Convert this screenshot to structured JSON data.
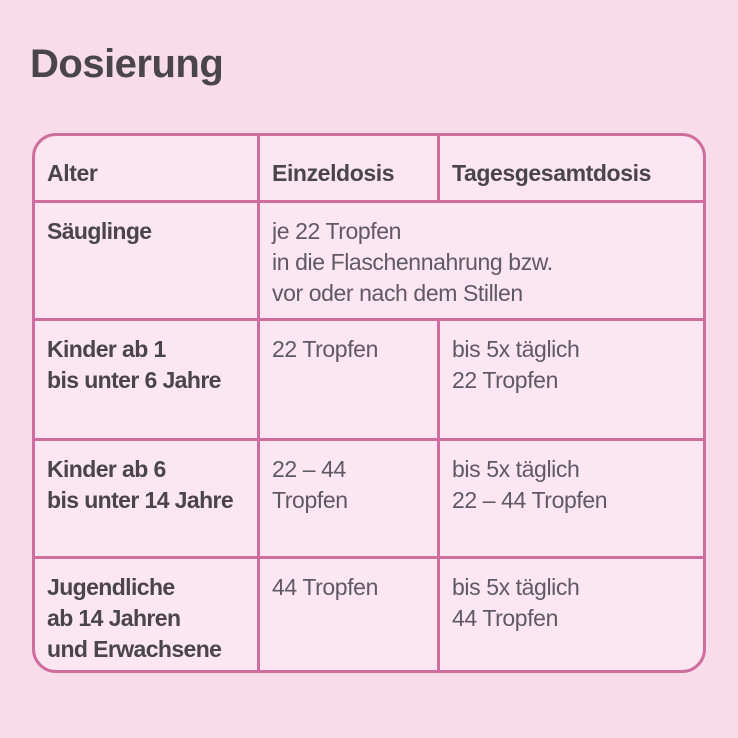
{
  "page": {
    "title": "Dosierung",
    "background_color": "#f8dcea"
  },
  "table": {
    "border_color": "#cf6d9f",
    "cell_background": "#fbe6f1",
    "header_text_color": "#4a444b",
    "body_text_color": "#5f5961",
    "headers": [
      "Alter",
      "Einzeldosis",
      "Tagesgesamtdosis"
    ],
    "rows": [
      {
        "age": "Säuglinge",
        "einzeldosis": "je 22 Tropfen\nin die Flaschennahrung bzw.\nvor oder nach dem Stillen",
        "tagesgesamtdosis": ""
      },
      {
        "age": "Kinder ab 1\nbis unter 6 Jahre",
        "einzeldosis": "22 Tropfen",
        "tagesgesamtdosis": "bis 5x täglich\n22 Tropfen"
      },
      {
        "age": "Kinder ab 6\nbis unter 14 Jahre",
        "einzeldosis": "22 – 44\nTropfen",
        "tagesgesamtdosis": "bis 5x täglich\n22 – 44 Tropfen"
      },
      {
        "age": "Jugendliche\nab 14 Jahren\nund Erwachsene",
        "einzeldosis": "44 Tropfen",
        "tagesgesamtdosis": "bis 5x täglich\n44 Tropfen"
      }
    ]
  }
}
